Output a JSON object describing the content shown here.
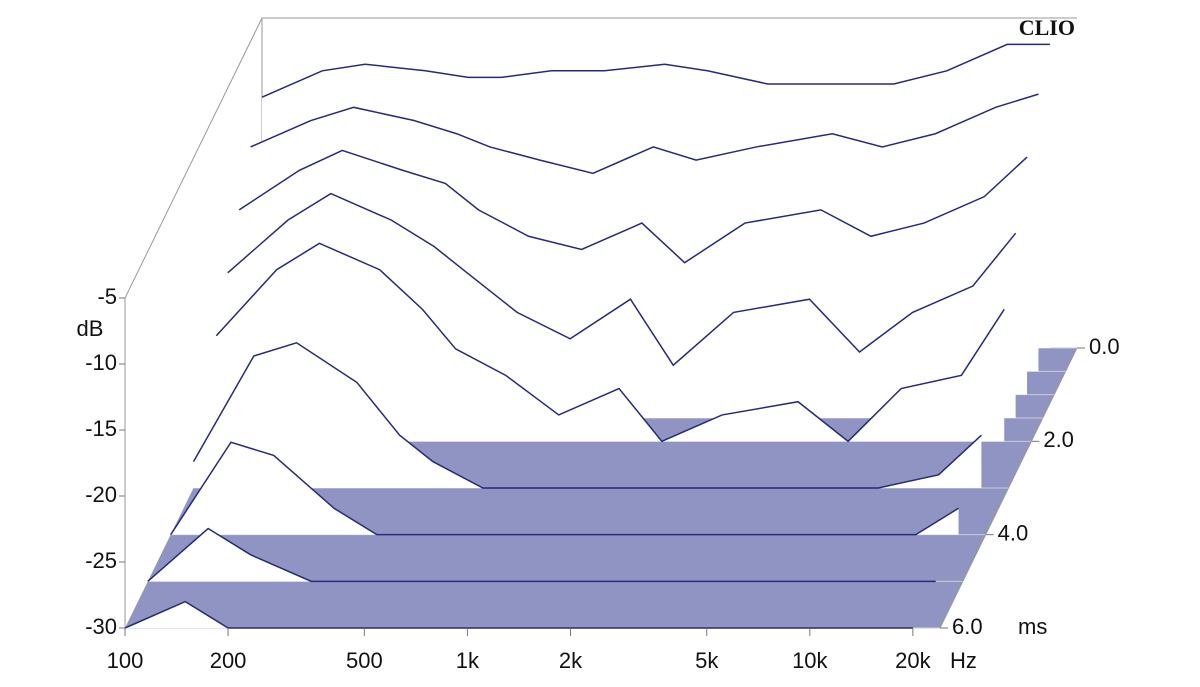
{
  "chart_data": {
    "type": "waterfall",
    "title": "CLIO",
    "y_label": "dB",
    "x_unit": "Hz",
    "z_unit": "ms",
    "x": [
      100,
      150,
      200,
      300,
      400,
      500,
      700,
      1000,
      1500,
      2000,
      3000,
      5000,
      7000,
      10000,
      15000,
      20000
    ],
    "z": [
      0,
      0.5,
      1,
      1.5,
      2,
      3,
      4,
      5,
      6
    ],
    "series": [
      {
        "values": [
          -11,
          -9,
          -8.5,
          -9,
          -9.5,
          -9.5,
          -9,
          -9,
          -8.5,
          -9,
          -10,
          -10,
          -10,
          -9,
          -7,
          -7
        ]
      },
      {
        "values": [
          -13,
          -11,
          -10,
          -11,
          -12,
          -13,
          -14,
          -15,
          -13,
          -14,
          -13,
          -12,
          -13,
          -12,
          -10,
          -9
        ]
      },
      {
        "values": [
          -16,
          -13,
          -11.5,
          -13,
          -14,
          -16,
          -18,
          -19,
          -17,
          -20,
          -17,
          -16,
          -18,
          -17,
          -15,
          -12
        ]
      },
      {
        "values": [
          -19,
          -15,
          -13,
          -15,
          -17,
          -19,
          -22,
          -24,
          -21,
          -26,
          -22,
          -21,
          -25,
          -22,
          -20,
          -16
        ]
      },
      {
        "values": [
          -22,
          -17,
          -15,
          -17,
          -20,
          -23,
          -25,
          -28,
          -26,
          -30,
          -28,
          -27,
          -30,
          -26,
          -25,
          -20
        ]
      },
      {
        "values": [
          -28,
          -20,
          -19,
          -22,
          -26,
          -28,
          -30,
          -30,
          -30,
          -30,
          -30,
          -30,
          -30,
          -30,
          -29,
          -26
        ]
      },
      {
        "values": [
          -30,
          -23,
          -24,
          -28,
          -30,
          -30,
          -30,
          -30,
          -30,
          -30,
          -30,
          -30,
          -30,
          -30,
          -30,
          -28
        ]
      },
      {
        "values": [
          -30,
          -26,
          -28,
          -30,
          -30,
          -30,
          -30,
          -30,
          -30,
          -30,
          -30,
          -30,
          -30,
          -30,
          -30,
          -30
        ]
      },
      {
        "values": [
          -30,
          -28,
          -30,
          -30,
          -30,
          -30,
          -30,
          -30,
          -30,
          -30,
          -30,
          -30,
          -30,
          -30,
          -30,
          -30
        ]
      }
    ],
    "color": "#262a7a",
    "floor_color": "#8f94c2",
    "log_x": true,
    "xlim": [
      100,
      24000
    ],
    "xticks": [
      100,
      200,
      500,
      {
        "value": 1000,
        "label": "1k"
      },
      {
        "value": 2000,
        "label": "2k"
      },
      {
        "value": 5000,
        "label": "5k"
      },
      {
        "value": 10000,
        "label": "10k"
      },
      {
        "value": 20000,
        "label": "20k"
      }
    ],
    "ylim": [
      -30,
      -5
    ],
    "yticks": [
      -5,
      -10,
      -15,
      -20,
      -25,
      -30
    ],
    "zlim": [
      0,
      6
    ],
    "zticks": [
      {
        "value": 0,
        "label": "0.0"
      },
      {
        "value": 2,
        "label": "2.0"
      },
      {
        "value": 4,
        "label": "4.0"
      },
      {
        "value": 6,
        "label": "6.0"
      }
    ]
  }
}
